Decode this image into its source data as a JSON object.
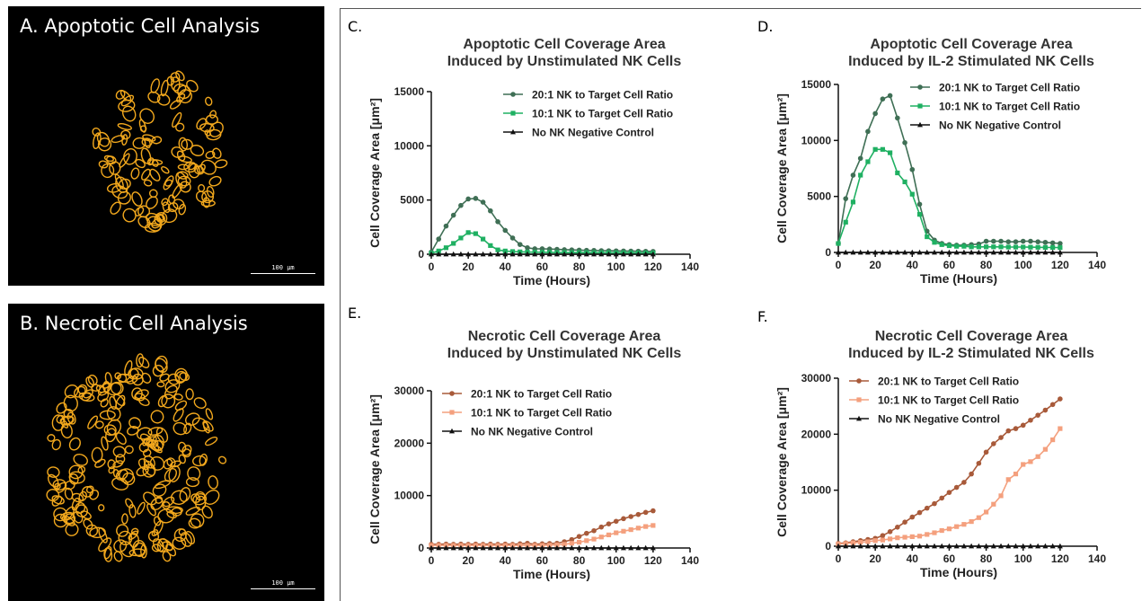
{
  "image_panels": [
    {
      "label": "A. Apoptotic Cell Analysis",
      "scale_bar": "100 µm",
      "outline_color": "#f2a81d"
    },
    {
      "label": "B. Necrotic Cell Analysis",
      "scale_bar": "100 µm",
      "outline_color": "#f2a81d"
    }
  ],
  "chart_data": [
    {
      "panel": "C.",
      "type": "line",
      "title": "Apoptotic Cell Coverage Area",
      "subtitle": "Induced by Unstimulated NK Cells",
      "xlabel": "Time (Hours)",
      "ylabel": "Cell Coverage Area [μm²]",
      "xlim": [
        0,
        140
      ],
      "ylim": [
        0,
        15000
      ],
      "xticks": [
        0,
        20,
        40,
        60,
        80,
        100,
        120,
        140
      ],
      "yticks": [
        0,
        5000,
        10000,
        15000
      ],
      "legend_position": "top-right",
      "grid": false,
      "series": [
        {
          "name": "20:1 NK to Target Cell Ratio",
          "color": "#3f6f55",
          "marker": "circle",
          "x": [
            0,
            4,
            8,
            12,
            16,
            20,
            24,
            28,
            32,
            36,
            40,
            44,
            48,
            52,
            56,
            60,
            64,
            68,
            72,
            76,
            80,
            84,
            88,
            92,
            96,
            100,
            104,
            108,
            112,
            116,
            120
          ],
          "y": [
            200,
            1400,
            2600,
            3600,
            4500,
            5100,
            5150,
            4800,
            4000,
            3000,
            2200,
            1500,
            900,
            600,
            500,
            500,
            480,
            450,
            420,
            400,
            380,
            360,
            350,
            330,
            320,
            310,
            300,
            290,
            280,
            270,
            260
          ]
        },
        {
          "name": "10:1 NK to Target Cell Ratio",
          "color": "#1fb062",
          "marker": "square",
          "x": [
            0,
            4,
            8,
            12,
            16,
            20,
            24,
            28,
            32,
            36,
            40,
            44,
            48,
            52,
            56,
            60,
            64,
            68,
            72,
            76,
            80,
            84,
            88,
            92,
            96,
            100,
            104,
            108,
            112,
            116,
            120
          ],
          "y": [
            100,
            300,
            600,
            1000,
            1500,
            2000,
            1900,
            1400,
            800,
            400,
            300,
            250,
            220,
            200,
            190,
            180,
            170,
            160,
            160,
            150,
            150,
            150,
            140,
            140,
            140,
            130,
            130,
            130,
            120,
            120,
            120
          ]
        },
        {
          "name": "No NK Negative Control",
          "color": "#111111",
          "marker": "triangle",
          "x": [
            0,
            4,
            8,
            12,
            16,
            20,
            24,
            28,
            32,
            36,
            40,
            44,
            48,
            52,
            56,
            60,
            64,
            68,
            72,
            76,
            80,
            84,
            88,
            92,
            96,
            100,
            104,
            108,
            112,
            116,
            120
          ],
          "y": [
            0,
            0,
            0,
            0,
            0,
            0,
            0,
            0,
            0,
            0,
            0,
            0,
            0,
            0,
            0,
            0,
            0,
            0,
            0,
            0,
            0,
            0,
            0,
            0,
            0,
            0,
            0,
            0,
            0,
            0,
            0
          ]
        }
      ]
    },
    {
      "panel": "D.",
      "type": "line",
      "title": "Apoptotic Cell Coverage Area",
      "subtitle": "Induced by IL-2 Stimulated NK Cells",
      "xlabel": "Time (Hours)",
      "ylabel": "Cell Coverage Area [μm²]",
      "xlim": [
        0,
        140
      ],
      "ylim": [
        0,
        15000
      ],
      "xticks": [
        0,
        20,
        40,
        60,
        80,
        100,
        120,
        140
      ],
      "yticks": [
        0,
        5000,
        10000,
        15000
      ],
      "legend_position": "top-right",
      "grid": false,
      "series": [
        {
          "name": "20:1 NK to Target Cell Ratio",
          "color": "#3f6f55",
          "marker": "circle",
          "x": [
            0,
            4,
            8,
            12,
            16,
            20,
            24,
            28,
            32,
            36,
            40,
            44,
            48,
            52,
            56,
            60,
            64,
            68,
            72,
            76,
            80,
            84,
            88,
            92,
            96,
            100,
            104,
            108,
            112,
            116,
            120
          ],
          "y": [
            800,
            4800,
            6900,
            8400,
            10800,
            12400,
            13700,
            14000,
            12000,
            9800,
            7400,
            4300,
            1900,
            1100,
            800,
            700,
            650,
            650,
            700,
            750,
            1000,
            1000,
            1000,
            950,
            950,
            1000,
            1000,
            950,
            900,
            850,
            800
          ]
        },
        {
          "name": "10:1 NK to Target Cell Ratio",
          "color": "#1fb062",
          "marker": "square",
          "x": [
            0,
            4,
            8,
            12,
            16,
            20,
            24,
            28,
            32,
            36,
            40,
            44,
            48,
            52,
            56,
            60,
            64,
            68,
            72,
            76,
            80,
            84,
            88,
            92,
            96,
            100,
            104,
            108,
            112,
            116,
            120
          ],
          "y": [
            800,
            2700,
            4500,
            6900,
            8100,
            9200,
            9200,
            8900,
            7100,
            6300,
            5200,
            3400,
            1400,
            900,
            700,
            600,
            550,
            550,
            500,
            500,
            500,
            500,
            500,
            480,
            480,
            480,
            470,
            460,
            450,
            440,
            430
          ]
        },
        {
          "name": "No NK Negative Control",
          "color": "#111111",
          "marker": "triangle",
          "x": [
            0,
            4,
            8,
            12,
            16,
            20,
            24,
            28,
            32,
            36,
            40,
            44,
            48,
            52,
            56,
            60,
            64,
            68,
            72,
            76,
            80,
            84,
            88,
            92,
            96,
            100,
            104,
            108,
            112,
            116,
            120
          ],
          "y": [
            0,
            0,
            0,
            0,
            0,
            0,
            0,
            0,
            0,
            0,
            0,
            0,
            0,
            0,
            0,
            0,
            0,
            0,
            0,
            0,
            0,
            0,
            0,
            0,
            0,
            0,
            0,
            0,
            0,
            0,
            0
          ]
        }
      ]
    },
    {
      "panel": "E.",
      "type": "line",
      "title": "Necrotic Cell Coverage Area",
      "subtitle": "Induced by Unstimulated NK Cells",
      "xlabel": "Time (Hours)",
      "ylabel": "Cell Coverage Area [μm²]",
      "xlim": [
        0,
        140
      ],
      "ylim": [
        0,
        30000
      ],
      "xticks": [
        0,
        20,
        40,
        60,
        80,
        100,
        120,
        140
      ],
      "yticks": [
        0,
        10000,
        20000,
        30000
      ],
      "legend_position": "top-left",
      "grid": false,
      "series": [
        {
          "name": "20:1 NK to Target Cell Ratio",
          "color": "#a85a3a",
          "marker": "circle",
          "x": [
            0,
            4,
            8,
            12,
            16,
            20,
            24,
            28,
            32,
            36,
            40,
            44,
            48,
            52,
            56,
            60,
            64,
            68,
            72,
            76,
            80,
            84,
            88,
            92,
            96,
            100,
            104,
            108,
            112,
            116,
            120
          ],
          "y": [
            700,
            700,
            750,
            700,
            750,
            700,
            750,
            700,
            750,
            700,
            750,
            700,
            800,
            900,
            700,
            800,
            850,
            900,
            1200,
            1600,
            2200,
            2800,
            3300,
            4000,
            4600,
            5100,
            5600,
            6000,
            6400,
            6800,
            7100
          ]
        },
        {
          "name": "10:1 NK to Target Cell Ratio",
          "color": "#f4a07e",
          "marker": "square",
          "x": [
            0,
            4,
            8,
            12,
            16,
            20,
            24,
            28,
            32,
            36,
            40,
            44,
            48,
            52,
            56,
            60,
            64,
            68,
            72,
            76,
            80,
            84,
            88,
            92,
            96,
            100,
            104,
            108,
            112,
            116,
            120
          ],
          "y": [
            500,
            500,
            500,
            500,
            500,
            500,
            500,
            500,
            500,
            500,
            500,
            500,
            500,
            500,
            500,
            500,
            550,
            600,
            700,
            900,
            1100,
            1400,
            1700,
            2100,
            2500,
            2900,
            3200,
            3500,
            3800,
            4100,
            4300
          ]
        },
        {
          "name": "No NK Negative Control",
          "color": "#111111",
          "marker": "triangle",
          "x": [
            0,
            4,
            8,
            12,
            16,
            20,
            24,
            28,
            32,
            36,
            40,
            44,
            48,
            52,
            56,
            60,
            64,
            68,
            72,
            76,
            80,
            84,
            88,
            92,
            96,
            100,
            104,
            108,
            112,
            116,
            120
          ],
          "y": [
            0,
            0,
            0,
            0,
            0,
            0,
            0,
            0,
            0,
            0,
            0,
            0,
            0,
            0,
            0,
            0,
            0,
            0,
            0,
            0,
            0,
            0,
            0,
            0,
            0,
            0,
            0,
            0,
            0,
            0,
            0
          ]
        }
      ]
    },
    {
      "panel": "F.",
      "type": "line",
      "title": "Necrotic Cell Coverage Area",
      "subtitle": "Induced by IL-2 Stimulated NK Cells",
      "xlabel": "Time (Hours)",
      "ylabel": "Cell Coverage Area [μm²]",
      "xlim": [
        0,
        140
      ],
      "ylim": [
        0,
        30000
      ],
      "xticks": [
        0,
        20,
        40,
        60,
        80,
        100,
        120,
        140
      ],
      "yticks": [
        0,
        10000,
        20000,
        30000
      ],
      "legend_position": "top-left",
      "grid": false,
      "series": [
        {
          "name": "20:1 NK to Target Cell Ratio",
          "color": "#a85a3a",
          "marker": "circle",
          "x": [
            0,
            4,
            8,
            12,
            16,
            20,
            24,
            28,
            32,
            36,
            40,
            44,
            48,
            52,
            56,
            60,
            64,
            68,
            72,
            76,
            80,
            84,
            88,
            92,
            96,
            100,
            104,
            108,
            112,
            116,
            120
          ],
          "y": [
            500,
            600,
            800,
            1000,
            1200,
            1400,
            1900,
            2600,
            3400,
            4300,
            5200,
            6000,
            6800,
            7600,
            8600,
            9600,
            10500,
            11400,
            12900,
            14800,
            16800,
            18300,
            19400,
            20600,
            21000,
            21600,
            22500,
            23400,
            24300,
            25300,
            26300
          ]
        },
        {
          "name": "10:1 NK to Target Cell Ratio",
          "color": "#f4a07e",
          "marker": "square",
          "x": [
            0,
            4,
            8,
            12,
            16,
            20,
            24,
            28,
            32,
            36,
            40,
            44,
            48,
            52,
            56,
            60,
            64,
            68,
            72,
            76,
            80,
            84,
            88,
            92,
            96,
            100,
            104,
            108,
            112,
            116,
            120
          ],
          "y": [
            400,
            500,
            600,
            700,
            800,
            1000,
            1100,
            1300,
            1500,
            1600,
            1700,
            1800,
            2100,
            2400,
            2800,
            3100,
            3500,
            3900,
            4400,
            5100,
            6100,
            7500,
            9000,
            11900,
            12900,
            14600,
            15100,
            16000,
            17300,
            19000,
            21000
          ]
        },
        {
          "name": "No NK Negative Control",
          "color": "#111111",
          "marker": "triangle",
          "x": [
            0,
            4,
            8,
            12,
            16,
            20,
            24,
            28,
            32,
            36,
            40,
            44,
            48,
            52,
            56,
            60,
            64,
            68,
            72,
            76,
            80,
            84,
            88,
            92,
            96,
            100,
            104,
            108,
            112,
            116,
            120
          ],
          "y": [
            0,
            0,
            0,
            0,
            0,
            0,
            0,
            0,
            0,
            0,
            0,
            0,
            0,
            0,
            0,
            0,
            0,
            0,
            0,
            0,
            0,
            0,
            0,
            0,
            0,
            0,
            0,
            0,
            0,
            0,
            0
          ]
        }
      ]
    }
  ]
}
